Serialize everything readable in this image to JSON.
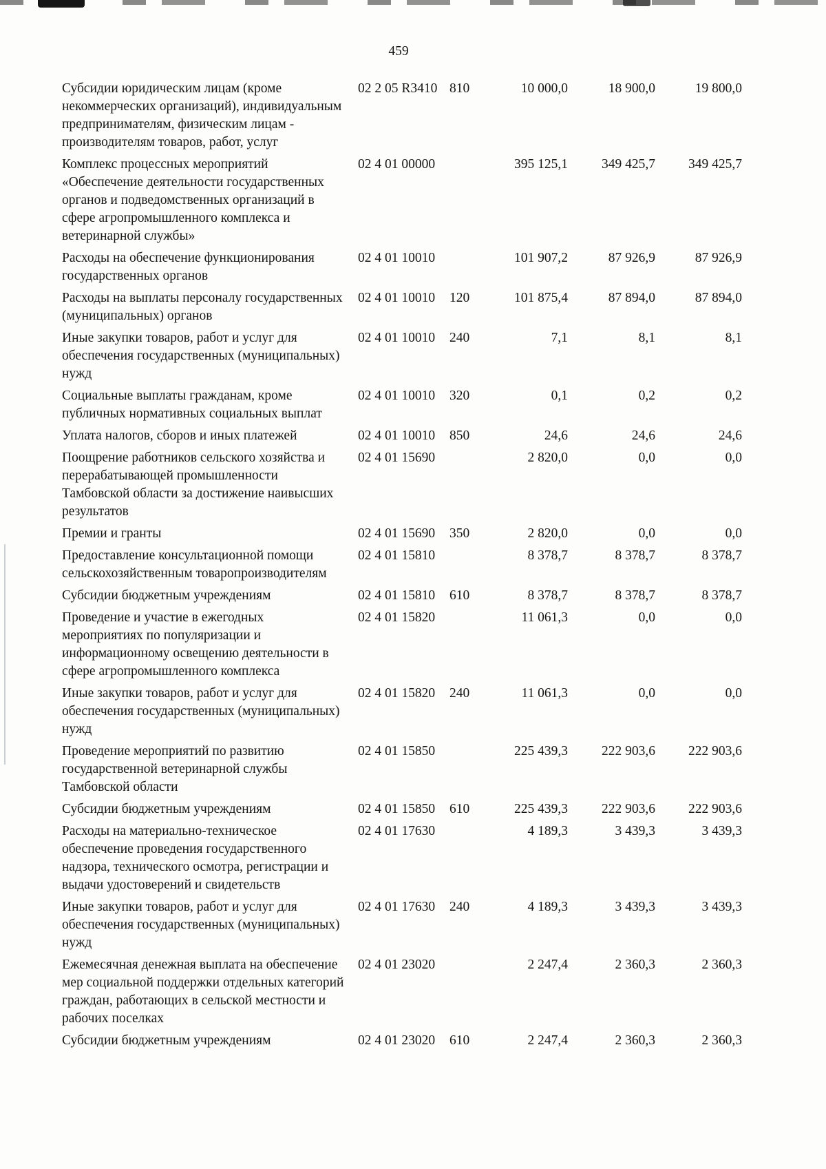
{
  "page": {
    "number": "459"
  },
  "table": {
    "rows": [
      {
        "name": "Субсидии юридическим лицам (кроме некоммерческих организаций), индивидуальным предпринимателям, физическим лицам - производителям товаров, работ, услуг",
        "code": "02 2 05 R3410",
        "vr": "810",
        "a1": "10 000,0",
        "a2": "18 900,0",
        "a3": "19 800,0"
      },
      {
        "name": "Комплекс процессных мероприятий «Обеспечение деятельности государственных органов и подведомственных организаций в сфере агропромышленного комплекса и ветеринарной службы»",
        "code": "02 4 01 00000",
        "vr": "",
        "a1": "395 125,1",
        "a2": "349 425,7",
        "a3": "349 425,7"
      },
      {
        "name": "Расходы на обеспечение функционирования государственных органов",
        "code": "02 4 01 10010",
        "vr": "",
        "a1": "101 907,2",
        "a2": "87 926,9",
        "a3": "87 926,9"
      },
      {
        "name": "Расходы на выплаты персоналу государственных (муниципальных) органов",
        "code": "02 4 01 10010",
        "vr": "120",
        "a1": "101 875,4",
        "a2": "87 894,0",
        "a3": "87 894,0"
      },
      {
        "name": "Иные закупки товаров, работ и услуг для обеспечения государственных (муниципальных) нужд",
        "code": "02 4 01 10010",
        "vr": "240",
        "a1": "7,1",
        "a2": "8,1",
        "a3": "8,1"
      },
      {
        "name": "Социальные выплаты гражданам, кроме публичных нормативных социальных выплат",
        "code": "02 4 01 10010",
        "vr": "320",
        "a1": "0,1",
        "a2": "0,2",
        "a3": "0,2"
      },
      {
        "name": "Уплата налогов, сборов и иных платежей",
        "code": "02 4 01 10010",
        "vr": "850",
        "a1": "24,6",
        "a2": "24,6",
        "a3": "24,6"
      },
      {
        "name": "Поощрение работников сельского хозяйства и перерабатывающей промышленности Тамбовской области за достижение наивысших результатов",
        "code": "02 4 01 15690",
        "vr": "",
        "a1": "2 820,0",
        "a2": "0,0",
        "a3": "0,0"
      },
      {
        "name": "Премии и гранты",
        "code": "02 4 01 15690",
        "vr": "350",
        "a1": "2 820,0",
        "a2": "0,0",
        "a3": "0,0"
      },
      {
        "name": "Предоставление консультационной помощи сельскохозяйственным товаропроизводителям",
        "code": "02 4 01 15810",
        "vr": "",
        "a1": "8 378,7",
        "a2": "8 378,7",
        "a3": "8 378,7"
      },
      {
        "name": "Субсидии бюджетным учреждениям",
        "code": "02 4 01 15810",
        "vr": "610",
        "a1": "8 378,7",
        "a2": "8 378,7",
        "a3": "8 378,7"
      },
      {
        "name": "Проведение и участие в ежегодных мероприятиях по популяризации и информационному освещению деятельности в сфере агропромышленного комплекса",
        "code": "02 4 01 15820",
        "vr": "",
        "a1": "11 061,3",
        "a2": "0,0",
        "a3": "0,0"
      },
      {
        "name": "Иные закупки товаров, работ и услуг для обеспечения государственных (муниципальных) нужд",
        "code": "02 4 01 15820",
        "vr": "240",
        "a1": "11 061,3",
        "a2": "0,0",
        "a3": "0,0"
      },
      {
        "name": "Проведение мероприятий по развитию государственной ветеринарной службы Тамбовской области",
        "code": "02 4 01 15850",
        "vr": "",
        "a1": "225 439,3",
        "a2": "222 903,6",
        "a3": "222 903,6"
      },
      {
        "name": "Субсидии бюджетным учреждениям",
        "code": "02 4 01 15850",
        "vr": "610",
        "a1": "225 439,3",
        "a2": "222 903,6",
        "a3": "222 903,6"
      },
      {
        "name": "Расходы на материально-техническое обеспечение проведения государственного надзора, технического осмотра, регистрации и выдачи удостоверений и свидетельств",
        "code": "02 4 01 17630",
        "vr": "",
        "a1": "4 189,3",
        "a2": "3 439,3",
        "a3": "3 439,3"
      },
      {
        "name": "Иные закупки товаров, работ и услуг для обеспечения государственных (муниципальных) нужд",
        "code": "02 4 01 17630",
        "vr": "240",
        "a1": "4 189,3",
        "a2": "3 439,3",
        "a3": "3 439,3"
      },
      {
        "name": "Ежемесячная денежная выплата на обеспечение мер социальной поддержки отдельных категорий граждан, работающих в сельской местности и рабочих поселках",
        "code": "02 4 01 23020",
        "vr": "",
        "a1": "2 247,4",
        "a2": "2 360,3",
        "a3": "2 360,3"
      },
      {
        "name": "Субсидии бюджетным учреждениям",
        "code": "02 4 01 23020",
        "vr": "610",
        "a1": "2 247,4",
        "a2": "2 360,3",
        "a3": "2 360,3"
      }
    ]
  }
}
